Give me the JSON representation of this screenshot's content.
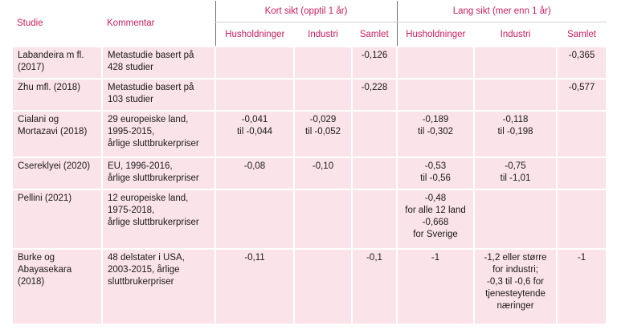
{
  "header": {
    "studie": "Studie",
    "kommentar": "Kommentar",
    "kort": "Kort sikt (opptil 1 år)",
    "lang": "Lang sikt (mer enn 1 år)",
    "sub": [
      "Husholdninger",
      "Industri",
      "Samlet",
      "Husholdninger",
      "Industri",
      "Samlet"
    ]
  },
  "rows": [
    {
      "studie": "Labandeira m fl.\n(2017)",
      "kommentar": "Metastudie basert på\n428 studier",
      "values": [
        "",
        "",
        "-0,126",
        "",
        "",
        "-0,365"
      ]
    },
    {
      "studie": "Zhu mfl. (2018)",
      "kommentar": "Metastudie basert på\n103 studier",
      "values": [
        "",
        "",
        "-0,228",
        "",
        "",
        "-0,577"
      ]
    },
    {
      "studie": "Cialani og\nMortazavi (2018)",
      "kommentar": "29 europeiske land,\n1995-2015,\nårlige sluttbrukerpriser",
      "values": [
        "-0,041\ntil -0,044",
        "-0,029\ntil -0,052",
        "",
        "-0,189\ntil -0,302",
        "-0,118\ntil -0,198",
        ""
      ]
    },
    {
      "studie": "Csereklyei (2020)",
      "kommentar": "EU, 1996-2016,\nårlige sluttbrukerpriser",
      "values": [
        "-0,08",
        "-0,10",
        "",
        "-0,53\ntil -0,56",
        "-0,75\ntil -1,01",
        ""
      ]
    },
    {
      "studie": "Pellini (2021)",
      "kommentar": "12 europeiske land,\n1975-2018,\nårlige sluttbrukerpriser",
      "values": [
        "",
        "",
        "",
        "-0,48\nfor alle 12 land\n-0,668\nfor Sverige",
        "",
        ""
      ]
    },
    {
      "studie": "Burke og\nAbayasekara\n(2018)",
      "kommentar": "48 delstater i USA,\n2003-2015, årlige\nsluttbrukerpriser",
      "values": [
        "-0,11",
        "",
        "-0,1",
        "-1",
        "-1,2 eller større\nfor industri;\n-0,3 til -0,6 for\ntjenesteytende\nnæringer",
        "-1"
      ]
    }
  ]
}
